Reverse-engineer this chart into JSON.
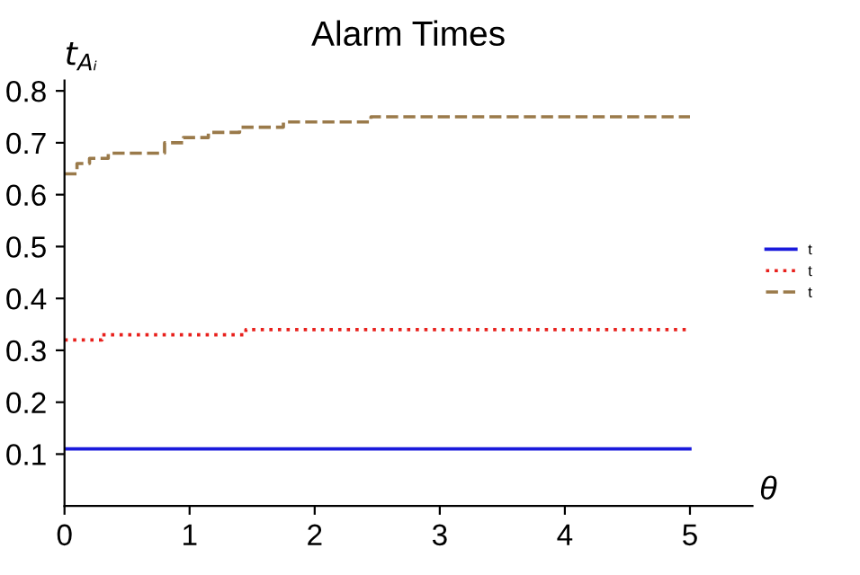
{
  "chart_data": {
    "type": "step",
    "title": "Alarm Times",
    "xlabel": "θ",
    "ylabel": "t$_{Aᵢ}$",
    "xlim": [
      0,
      5.5
    ],
    "ylim": [
      0,
      0.82
    ],
    "xticks": [
      0,
      1,
      2,
      3,
      4,
      5
    ],
    "yticks": [
      0.1,
      0.2,
      0.3,
      0.4,
      0.5,
      0.6,
      0.7,
      0.8
    ],
    "grid": false,
    "legend": "right",
    "series": [
      {
        "name": "t",
        "color": "#1a1adc",
        "line_style": "solid",
        "x": [
          0,
          5
        ],
        "values": [
          0.11,
          0.11
        ]
      },
      {
        "name": "t",
        "color": "#e8201c",
        "line_style": "dotted",
        "x": [
          0,
          0.3,
          1.45,
          5
        ],
        "values": [
          0.32,
          0.33,
          0.34,
          0.34
        ]
      },
      {
        "name": "t",
        "color": "#9a7a4a",
        "line_style": "dashed",
        "x": [
          0,
          0.1,
          0.2,
          0.35,
          0.6,
          0.8,
          0.95,
          1.15,
          1.4,
          1.75,
          2.45,
          5
        ],
        "values": [
          0.64,
          0.66,
          0.67,
          0.68,
          0.68,
          0.7,
          0.71,
          0.72,
          0.73,
          0.74,
          0.75,
          0.75
        ]
      }
    ]
  }
}
